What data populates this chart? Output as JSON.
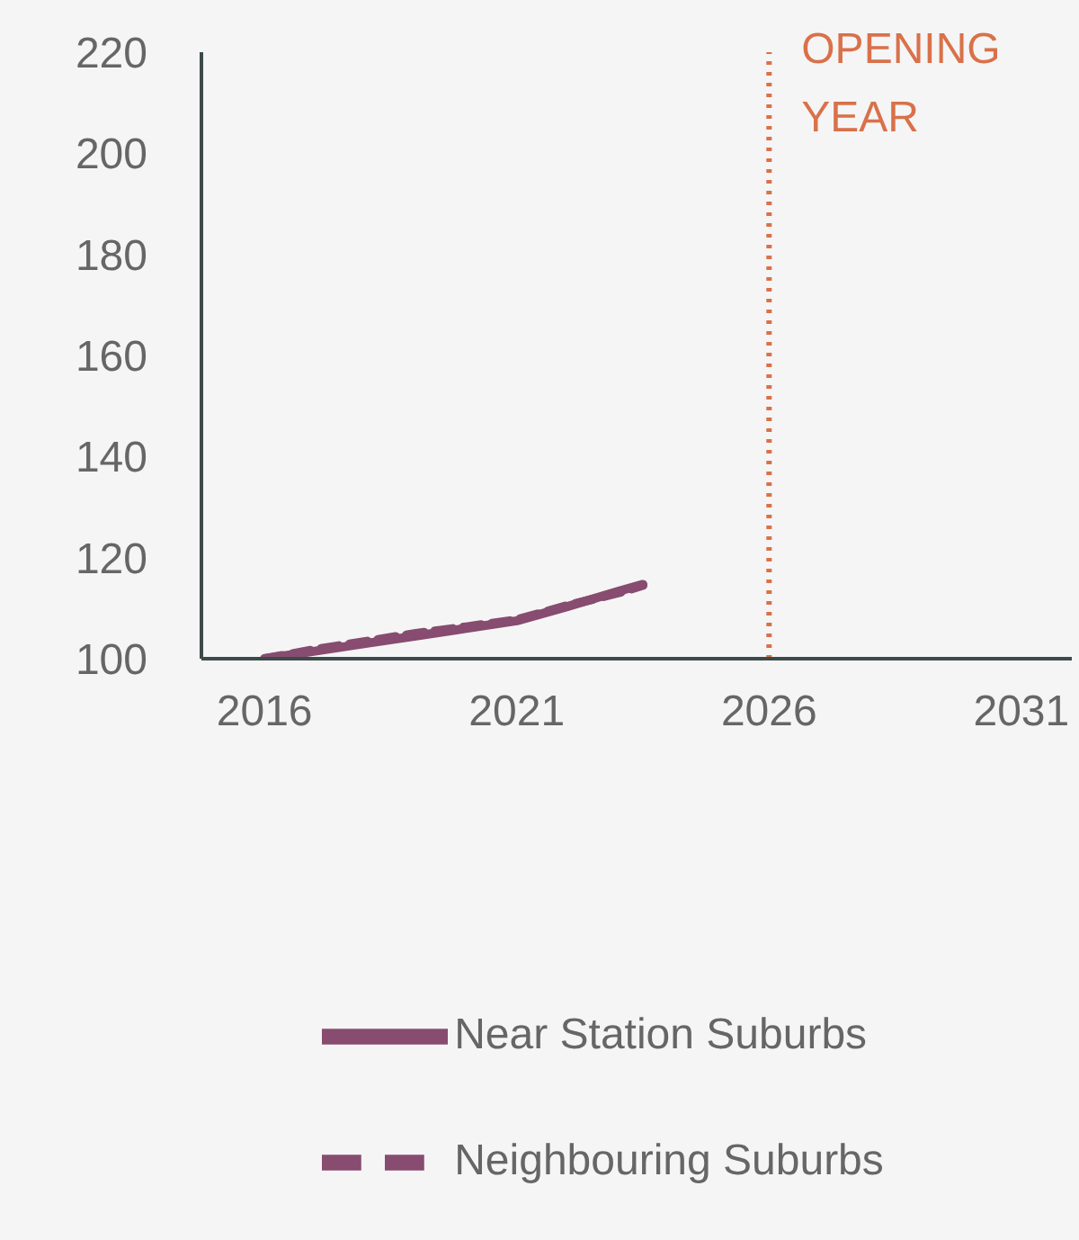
{
  "chart_data": {
    "type": "line",
    "x": [
      2016,
      2017,
      2018,
      2019,
      2020,
      2021,
      2022,
      2023,
      2023.5
    ],
    "series": [
      {
        "name": "Near Station Suburbs",
        "color": "#874c70",
        "line_style": "solid",
        "values": [
          100,
          101.5,
          103,
          104.5,
          106,
          107.5,
          110.3,
          113.3,
          114.7
        ]
      },
      {
        "name": "Neighbouring Suburbs",
        "color": "#874c70",
        "line_style": "dashed",
        "values": [
          100,
          101.8,
          103.4,
          105,
          106.3,
          107.7,
          110.5,
          113,
          114.5
        ]
      }
    ],
    "xlim": [
      2014.75,
      2032
    ],
    "xticks": [
      2016,
      2021,
      2026,
      2031
    ],
    "ylim": [
      100,
      220
    ],
    "yticks": [
      100,
      120,
      140,
      160,
      180,
      200,
      220
    ],
    "ref_lines": [
      {
        "axis": "x",
        "value": 2026,
        "label": "OPENING YEAR",
        "color": "#d9714a",
        "line_style": "dotted"
      }
    ],
    "grid": false,
    "legend": "bottom",
    "marker": "none"
  }
}
